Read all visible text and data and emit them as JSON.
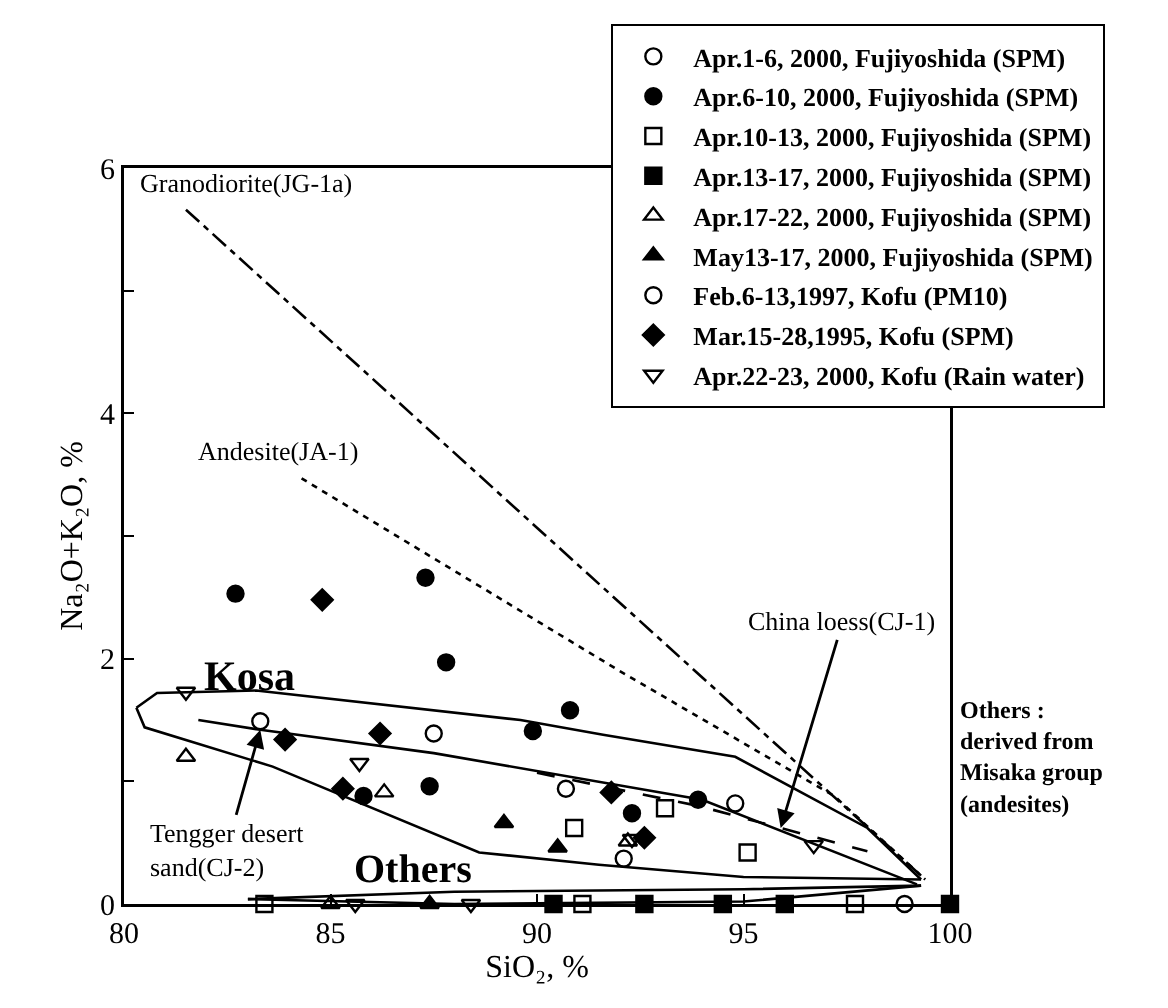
{
  "chart_data": {
    "type": "scatter",
    "xlabel": "SiO₂, %",
    "ylabel": "Na₂O+K₂O, %",
    "xlim": [
      80,
      100
    ],
    "ylim": [
      0,
      6
    ],
    "xticks": [
      80,
      85,
      90,
      95,
      100
    ],
    "yticks": [
      0,
      {
        "value": 1,
        "label": null
      },
      2,
      {
        "value": 3,
        "label": null
      },
      4,
      {
        "value": 5,
        "label": null
      },
      6
    ],
    "grid": false,
    "legend": "top right",
    "series": [
      {
        "name": "Apr.1-6, 2000, Fujiyoshida (SPM)",
        "color": "#000000",
        "marker": "circle-open",
        "x": [
          83.3,
          87.5
        ],
        "values": [
          1.49,
          1.39
        ]
      },
      {
        "name": "Apr.6-10, 2000, Fujiyoshida (SPM)",
        "color": "#000000",
        "marker": "circle",
        "x": [
          82.7,
          87.3,
          87.8,
          90.8,
          89.9,
          85.8,
          87.4,
          92.3,
          93.9
        ],
        "values": [
          2.53,
          2.66,
          1.97,
          1.58,
          1.41,
          0.88,
          0.96,
          0.74,
          0.85
        ]
      },
      {
        "name": "Apr.10-13, 2000, Fujiyoshida (SPM)",
        "color": "#000000",
        "marker": "square-open",
        "x": [
          90.9,
          93.1,
          95.1,
          83.4,
          91.1,
          97.7
        ],
        "values": [
          0.62,
          0.78,
          0.42,
          0,
          0,
          0
        ]
      },
      {
        "name": "Apr.13-17, 2000, Fujiyoshida (SPM)",
        "color": "#000000",
        "marker": "square",
        "x": [
          90.4,
          92.6,
          94.5,
          96.0,
          100
        ],
        "values": [
          0,
          0,
          0,
          0,
          0
        ]
      },
      {
        "name": "Apr.17-22, 2000, Fujiyoshida (SPM)",
        "color": "#000000",
        "marker": "triangle-up-open",
        "x": [
          81.5,
          86.3,
          92.2,
          85.0
        ],
        "values": [
          1.2,
          0.91,
          0.51,
          0
        ]
      },
      {
        "name": "May13-17, 2000, Fujiyoshida (SPM)",
        "color": "#000000",
        "marker": "triangle-up",
        "x": [
          89.2,
          90.5,
          87.4
        ],
        "values": [
          0.66,
          0.46,
          0
        ]
      },
      {
        "name": "Feb.6-13,1997, Kofu (PM10)",
        "color": "#000000",
        "marker": "circle-open",
        "x": [
          90.7,
          92.1,
          94.8,
          98.9
        ],
        "values": [
          0.94,
          0.37,
          0.82,
          0
        ]
      },
      {
        "name": "Mar.15-28,1995, Kofu (SPM)",
        "color": "#000000",
        "marker": "diamond",
        "x": [
          84.8,
          83.9,
          86.2,
          85.3,
          91.8,
          92.6
        ],
        "values": [
          2.48,
          1.34,
          1.39,
          0.94,
          0.91,
          0.54
        ]
      },
      {
        "name": "Apr.22-23, 2000, Kofu (Rain water)",
        "color": "#000000",
        "marker": "triangle-down-open",
        "x": [
          81.5,
          85.7,
          92.3,
          96.7,
          85.6,
          88.4
        ],
        "values": [
          1.73,
          1.15,
          0.53,
          0.48,
          0,
          0
        ]
      },
      {
        "name": "Granodiorite(JG-1a)",
        "type": "line",
        "color": "#000000",
        "line_style": "dashdot",
        "x": [
          81.5,
          99.4
        ],
        "values": [
          5.66,
          0.2
        ]
      },
      {
        "name": "Andesite(JA-1)",
        "type": "line",
        "color": "#000000",
        "line_style": "dotted",
        "x": [
          84.3,
          92.0,
          97.2,
          99.4
        ],
        "values": [
          3.47,
          1.9,
          0.88,
          0.2
        ]
      },
      {
        "type": "line",
        "color": "#000000",
        "line_style": "dashed",
        "x": [
          90.0,
          93.9,
          95.9,
          98.0
        ],
        "values": [
          1.07,
          0.8,
          0.62,
          0.43
        ]
      },
      {
        "type": "line",
        "color": "#000000",
        "line_style": "solid",
        "x": [
          81.8,
          83.3,
          87.5,
          94.0,
          99.2
        ],
        "values": [
          1.5,
          1.42,
          1.23,
          0.85,
          0.16
        ]
      },
      {
        "type": "line",
        "color": "#000000",
        "line_style": "solid",
        "x": [
          80.3,
          80.8,
          83.2,
          89.6,
          91.6,
          94.8,
          98.0,
          99.3
        ],
        "values": [
          1.6,
          1.72,
          1.74,
          1.5,
          1.38,
          1.2,
          0.62,
          0.2
        ]
      },
      {
        "type": "line",
        "color": "#000000",
        "line_style": "solid",
        "x": [
          80.3,
          80.5,
          83.6,
          88.6,
          91.5,
          95.0,
          99.3
        ],
        "values": [
          1.6,
          1.44,
          1.12,
          0.42,
          0.32,
          0.22,
          0.2
        ]
      },
      {
        "type": "line",
        "color": "#000000",
        "line_style": "solid",
        "x": [
          83.0,
          88.0,
          95.0,
          99.3
        ],
        "values": [
          0.04,
          0.1,
          0.12,
          0.15
        ]
      },
      {
        "type": "line",
        "color": "#000000",
        "line_style": "solid",
        "x": [
          83.0,
          88.0,
          95.0,
          99.3
        ],
        "values": [
          0.04,
          0.0,
          0.02,
          0.15
        ]
      }
    ],
    "annotations": [
      "Kosa",
      "Others",
      {
        "text": "China loess(CJ-1)",
        "x": 95.9,
        "y": 0.62
      },
      {
        "text": "Tengger desert\nsand(CJ-2)",
        "x": 83.3,
        "y": 1.42
      },
      "Others :\nderived from\nMisaka group\n(andesites)"
    ]
  }
}
